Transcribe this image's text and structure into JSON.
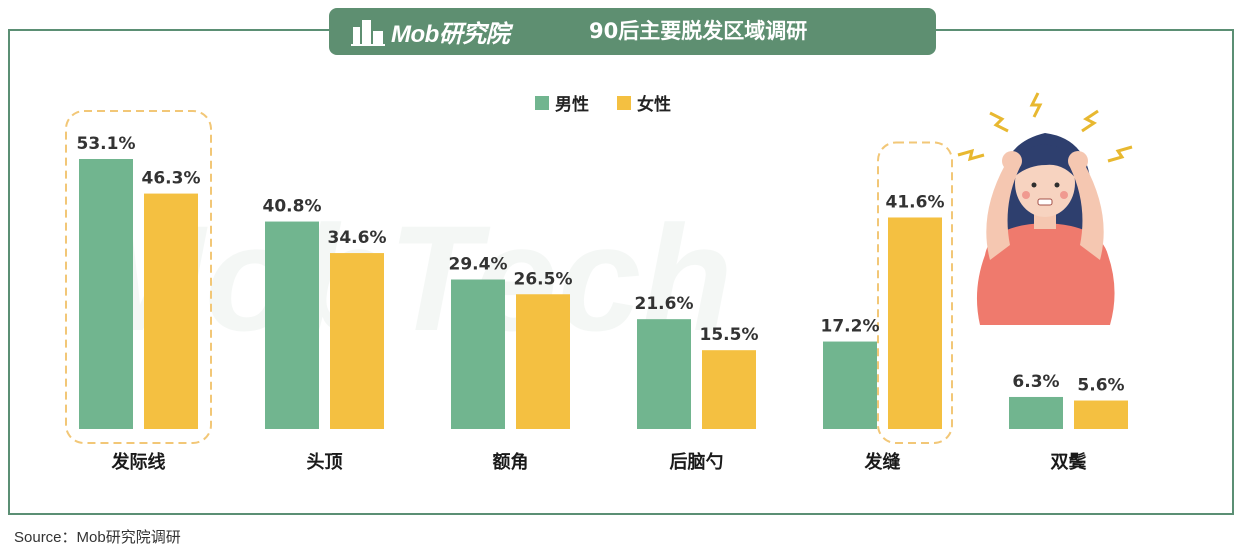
{
  "header": {
    "logo_text": "Mob研究院",
    "title": "90后主要脱发区域调研"
  },
  "watermark": "MobTech",
  "legend": [
    {
      "label": "男性",
      "color": "#71b58f"
    },
    {
      "label": "女性",
      "color": "#f4c041"
    }
  ],
  "source": "Source：Mob研究院调研",
  "colors": {
    "male": "#71b58f",
    "female": "#f4c041",
    "frame": "#5b8f74",
    "header_bg": "#5e8f71",
    "highlight_border": "#f2c777"
  },
  "chart_data": {
    "type": "bar",
    "title": "90后主要脱发区域调研",
    "categories": [
      "发际线",
      "头顶",
      "额角",
      "后脑勺",
      "发缝",
      "双鬓"
    ],
    "series": [
      {
        "name": "男性",
        "values": [
          53.1,
          40.8,
          29.4,
          21.6,
          17.2,
          6.3
        ],
        "labels": [
          "53.1%",
          "40.8%",
          "29.4%",
          "21.6%",
          "17.2%",
          "6.3%"
        ]
      },
      {
        "name": "女性",
        "values": [
          46.3,
          34.6,
          26.5,
          15.5,
          41.6,
          5.6
        ],
        "labels": [
          "46.3%",
          "34.6%",
          "26.5%",
          "15.5%",
          "41.6%",
          "5.6%"
        ]
      }
    ],
    "highlighted": [
      {
        "category": "发际线",
        "series": "all"
      },
      {
        "category": "发缝",
        "series": "女性"
      }
    ],
    "ylim": [
      0,
      60
    ],
    "grid": false,
    "legend_position": "top-center"
  }
}
